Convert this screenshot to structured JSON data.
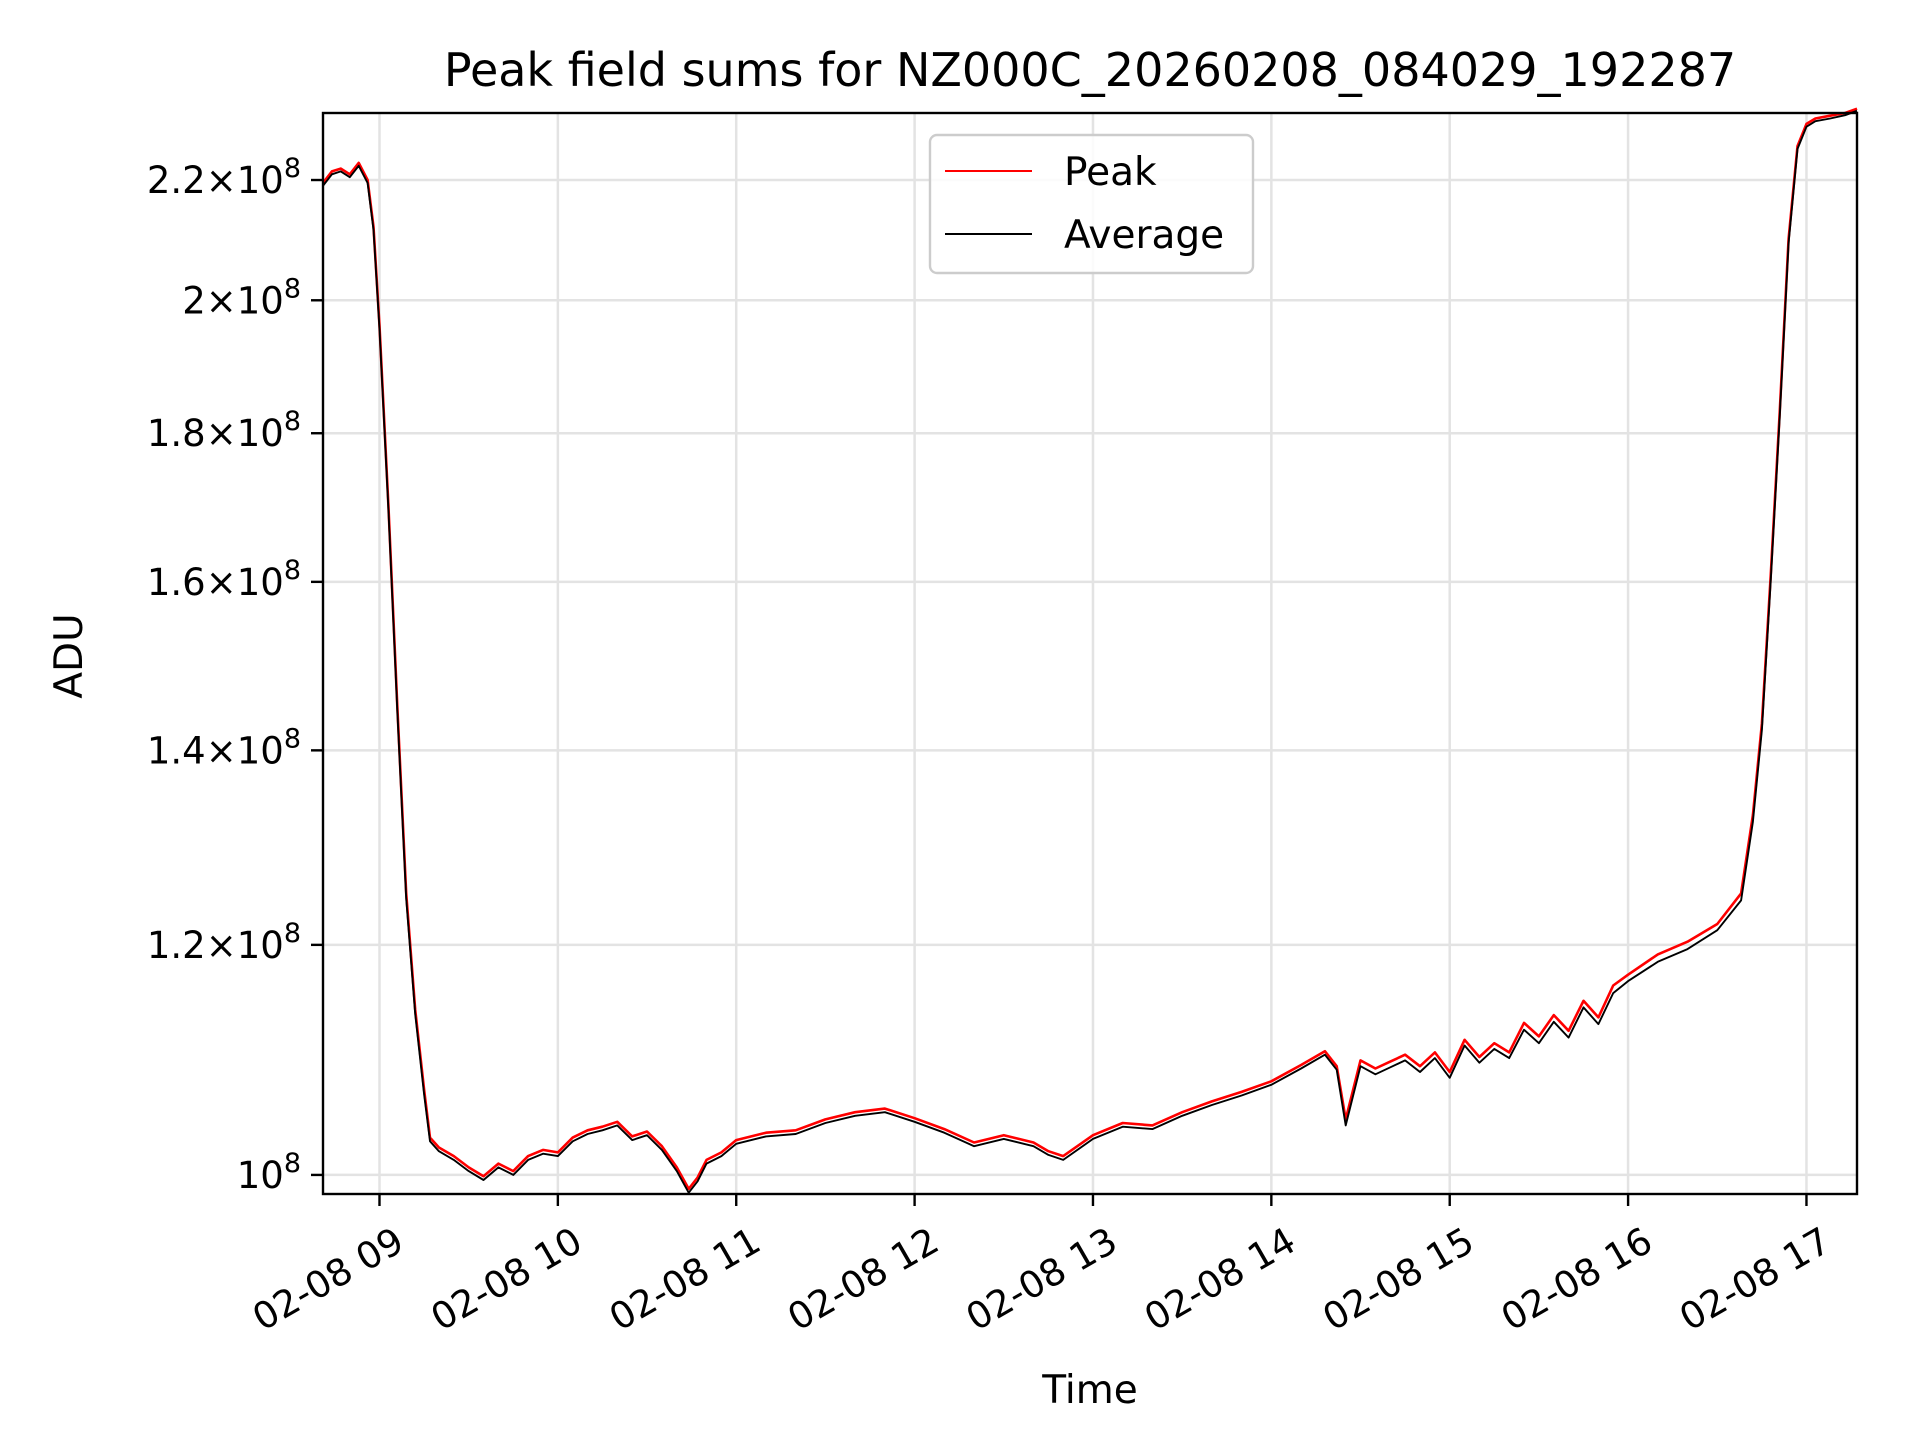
{
  "chart_data": {
    "type": "line",
    "title": "Peak field sums for NZ000C_20260208_084029_192287",
    "xlabel": "Time",
    "ylabel": "ADU",
    "x_axis": "datetime",
    "xlim": [
      "2026-02-08 08:41",
      "2026-02-08 17:17"
    ],
    "ylim": [
      98500000,
      232000000
    ],
    "yscale": "log",
    "grid": true,
    "legend_position": "upper-center",
    "x_ticks": [
      {
        "value": "2026-02-08 09:00",
        "label": "02-08 09"
      },
      {
        "value": "2026-02-08 10:00",
        "label": "02-08 10"
      },
      {
        "value": "2026-02-08 11:00",
        "label": "02-08 11"
      },
      {
        "value": "2026-02-08 12:00",
        "label": "02-08 12"
      },
      {
        "value": "2026-02-08 13:00",
        "label": "02-08 13"
      },
      {
        "value": "2026-02-08 14:00",
        "label": "02-08 14"
      },
      {
        "value": "2026-02-08 15:00",
        "label": "02-08 15"
      },
      {
        "value": "2026-02-08 16:00",
        "label": "02-08 16"
      },
      {
        "value": "2026-02-08 17:00",
        "label": "02-08 17"
      }
    ],
    "y_ticks": [
      {
        "value": 100000000,
        "mantissa": "",
        "exponent": "8"
      },
      {
        "value": 120000000,
        "mantissa": "1.2",
        "exponent": "8"
      },
      {
        "value": 140000000,
        "mantissa": "1.4",
        "exponent": "8"
      },
      {
        "value": 160000000,
        "mantissa": "1.6",
        "exponent": "8"
      },
      {
        "value": 180000000,
        "mantissa": "1.8",
        "exponent": "8"
      },
      {
        "value": 200000000,
        "mantissa": "2",
        "exponent": "8"
      },
      {
        "value": 220000000,
        "mantissa": "2.2",
        "exponent": "8"
      }
    ],
    "series": [
      {
        "name": "Peak",
        "color": "#ff0000",
        "x": [
          "2026-02-08 08:41",
          "2026-02-08 08:44",
          "2026-02-08 08:47",
          "2026-02-08 08:50",
          "2026-02-08 08:53",
          "2026-02-08 08:56",
          "2026-02-08 08:58",
          "2026-02-08 09:00",
          "2026-02-08 09:03",
          "2026-02-08 09:06",
          "2026-02-08 09:09",
          "2026-02-08 09:12",
          "2026-02-08 09:15",
          "2026-02-08 09:17",
          "2026-02-08 09:20",
          "2026-02-08 09:25",
          "2026-02-08 09:30",
          "2026-02-08 09:35",
          "2026-02-08 09:40",
          "2026-02-08 09:45",
          "2026-02-08 09:50",
          "2026-02-08 09:55",
          "2026-02-08 10:00",
          "2026-02-08 10:05",
          "2026-02-08 10:10",
          "2026-02-08 10:15",
          "2026-02-08 10:20",
          "2026-02-08 10:25",
          "2026-02-08 10:30",
          "2026-02-08 10:35",
          "2026-02-08 10:40",
          "2026-02-08 10:44",
          "2026-02-08 10:47",
          "2026-02-08 10:50",
          "2026-02-08 10:55",
          "2026-02-08 11:00",
          "2026-02-08 11:10",
          "2026-02-08 11:20",
          "2026-02-08 11:30",
          "2026-02-08 11:40",
          "2026-02-08 11:50",
          "2026-02-08 12:00",
          "2026-02-08 12:10",
          "2026-02-08 12:20",
          "2026-02-08 12:30",
          "2026-02-08 12:40",
          "2026-02-08 12:45",
          "2026-02-08 12:50",
          "2026-02-08 13:00",
          "2026-02-08 13:10",
          "2026-02-08 13:20",
          "2026-02-08 13:30",
          "2026-02-08 13:40",
          "2026-02-08 13:50",
          "2026-02-08 14:00",
          "2026-02-08 14:10",
          "2026-02-08 14:18",
          "2026-02-08 14:22",
          "2026-02-08 14:25",
          "2026-02-08 14:30",
          "2026-02-08 14:35",
          "2026-02-08 14:40",
          "2026-02-08 14:45",
          "2026-02-08 14:50",
          "2026-02-08 14:55",
          "2026-02-08 15:00",
          "2026-02-08 15:05",
          "2026-02-08 15:10",
          "2026-02-08 15:15",
          "2026-02-08 15:20",
          "2026-02-08 15:25",
          "2026-02-08 15:30",
          "2026-02-08 15:35",
          "2026-02-08 15:40",
          "2026-02-08 15:45",
          "2026-02-08 15:50",
          "2026-02-08 15:55",
          "2026-02-08 16:00",
          "2026-02-08 16:10",
          "2026-02-08 16:20",
          "2026-02-08 16:30",
          "2026-02-08 16:38",
          "2026-02-08 16:42",
          "2026-02-08 16:45",
          "2026-02-08 16:48",
          "2026-02-08 16:51",
          "2026-02-08 16:54",
          "2026-02-08 16:57",
          "2026-02-08 17:00",
          "2026-02-08 17:03",
          "2026-02-08 17:08",
          "2026-02-08 17:13",
          "2026-02-08 17:17"
        ],
        "y": [
          219500000,
          221500000,
          222000000,
          221000000,
          223000000,
          220000000,
          212000000,
          196000000,
          170000000,
          145000000,
          125000000,
          114000000,
          107000000,
          103000000,
          102200000,
          101500000,
          100600000,
          99900000,
          100900000,
          100300000,
          101500000,
          102000000,
          101800000,
          103000000,
          103600000,
          103900000,
          104300000,
          103100000,
          103500000,
          102300000,
          100600000,
          98900000,
          99800000,
          101200000,
          101800000,
          102800000,
          103400000,
          103600000,
          104500000,
          105100000,
          105400000,
          104600000,
          103700000,
          102600000,
          103200000,
          102600000,
          101900000,
          101500000,
          103200000,
          104200000,
          104000000,
          105100000,
          106000000,
          106800000,
          107700000,
          109100000,
          110300000,
          109000000,
          104500000,
          109500000,
          108800000,
          109400000,
          110000000,
          109000000,
          110200000,
          108500000,
          111300000,
          109800000,
          111000000,
          110200000,
          112800000,
          111600000,
          113500000,
          112100000,
          114800000,
          113300000,
          116200000,
          117200000,
          119100000,
          120300000,
          122000000,
          125000000,
          133000000,
          143000000,
          161000000,
          183000000,
          210000000,
          226000000,
          230000000,
          231000000,
          231500000,
          232000000,
          232800000
        ]
      },
      {
        "name": "Average",
        "color": "#000000",
        "x": [
          "2026-02-08 08:41",
          "2026-02-08 08:44",
          "2026-02-08 08:47",
          "2026-02-08 08:50",
          "2026-02-08 08:53",
          "2026-02-08 08:56",
          "2026-02-08 08:58",
          "2026-02-08 09:00",
          "2026-02-08 09:03",
          "2026-02-08 09:06",
          "2026-02-08 09:09",
          "2026-02-08 09:12",
          "2026-02-08 09:15",
          "2026-02-08 09:17",
          "2026-02-08 09:20",
          "2026-02-08 09:25",
          "2026-02-08 09:30",
          "2026-02-08 09:35",
          "2026-02-08 09:40",
          "2026-02-08 09:45",
          "2026-02-08 09:50",
          "2026-02-08 09:55",
          "2026-02-08 10:00",
          "2026-02-08 10:05",
          "2026-02-08 10:10",
          "2026-02-08 10:15",
          "2026-02-08 10:20",
          "2026-02-08 10:25",
          "2026-02-08 10:30",
          "2026-02-08 10:35",
          "2026-02-08 10:40",
          "2026-02-08 10:44",
          "2026-02-08 10:47",
          "2026-02-08 10:50",
          "2026-02-08 10:55",
          "2026-02-08 11:00",
          "2026-02-08 11:10",
          "2026-02-08 11:20",
          "2026-02-08 11:30",
          "2026-02-08 11:40",
          "2026-02-08 11:50",
          "2026-02-08 12:00",
          "2026-02-08 12:10",
          "2026-02-08 12:20",
          "2026-02-08 12:30",
          "2026-02-08 12:40",
          "2026-02-08 12:45",
          "2026-02-08 12:50",
          "2026-02-08 13:00",
          "2026-02-08 13:10",
          "2026-02-08 13:20",
          "2026-02-08 13:30",
          "2026-02-08 13:40",
          "2026-02-08 13:50",
          "2026-02-08 14:00",
          "2026-02-08 14:10",
          "2026-02-08 14:18",
          "2026-02-08 14:22",
          "2026-02-08 14:25",
          "2026-02-08 14:30",
          "2026-02-08 14:35",
          "2026-02-08 14:40",
          "2026-02-08 14:45",
          "2026-02-08 14:50",
          "2026-02-08 14:55",
          "2026-02-08 15:00",
          "2026-02-08 15:05",
          "2026-02-08 15:10",
          "2026-02-08 15:15",
          "2026-02-08 15:20",
          "2026-02-08 15:25",
          "2026-02-08 15:30",
          "2026-02-08 15:35",
          "2026-02-08 15:40",
          "2026-02-08 15:45",
          "2026-02-08 15:50",
          "2026-02-08 15:55",
          "2026-02-08 16:00",
          "2026-02-08 16:10",
          "2026-02-08 16:20",
          "2026-02-08 16:30",
          "2026-02-08 16:38",
          "2026-02-08 16:42",
          "2026-02-08 16:45",
          "2026-02-08 16:48",
          "2026-02-08 16:51",
          "2026-02-08 16:54",
          "2026-02-08 16:57",
          "2026-02-08 17:00",
          "2026-02-08 17:03",
          "2026-02-08 17:08",
          "2026-02-08 17:13",
          "2026-02-08 17:17"
        ],
        "y": [
          219000000,
          221000000,
          221500000,
          220500000,
          222500000,
          219500000,
          211500000,
          195500000,
          169500000,
          144500000,
          124500000,
          113600000,
          106600000,
          102700000,
          101900000,
          101200000,
          100300000,
          99600000,
          100600000,
          100000000,
          101200000,
          101700000,
          101500000,
          102700000,
          103300000,
          103600000,
          104000000,
          102800000,
          103200000,
          102000000,
          100300000,
          98600000,
          99500000,
          100900000,
          101500000,
          102500000,
          103100000,
          103300000,
          104200000,
          104800000,
          105100000,
          104300000,
          103400000,
          102300000,
          102900000,
          102300000,
          101600000,
          101200000,
          102900000,
          103900000,
          103700000,
          104800000,
          105700000,
          106500000,
          107400000,
          108800000,
          110000000,
          108700000,
          104000000,
          109000000,
          108300000,
          108900000,
          109500000,
          108500000,
          109700000,
          108000000,
          110800000,
          109300000,
          110500000,
          109700000,
          112200000,
          111000000,
          112900000,
          111500000,
          114200000,
          112700000,
          115500000,
          116600000,
          118400000,
          119600000,
          121400000,
          124300000,
          132300000,
          142300000,
          160300000,
          182300000,
          209300000,
          225500000,
          229500000,
          230500000,
          231000000,
          231600000,
          232400000
        ]
      }
    ]
  }
}
